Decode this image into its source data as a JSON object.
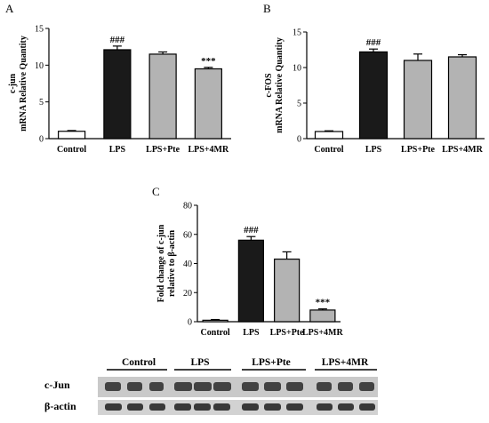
{
  "figure": {
    "panels": [
      "A",
      "B",
      "C"
    ]
  },
  "colors": {
    "control": "#ffffff",
    "lps": "#1a1a1a",
    "pte": "#b3b3b3",
    "mr": "#b3b3b3",
    "axis": "#000000"
  },
  "chart_data": [
    {
      "id": "A",
      "type": "bar",
      "title": "",
      "ylabel": [
        "c-jun",
        "mRNA Relative Quantity"
      ],
      "categories": [
        "Control",
        "LPS",
        "LPS+Pte",
        "LPS+4MR"
      ],
      "values": [
        1.0,
        12.1,
        11.5,
        9.5
      ],
      "errors": [
        0.1,
        0.5,
        0.3,
        0.2
      ],
      "annotations": [
        "",
        "###",
        "",
        "***"
      ],
      "ylim": [
        0,
        15
      ],
      "yticks": [
        0,
        5,
        10,
        15
      ]
    },
    {
      "id": "B",
      "type": "bar",
      "title": "",
      "ylabel": [
        "c-FOS",
        "mRNA Relative Quantity"
      ],
      "categories": [
        "Control",
        "LPS",
        "LPS+Pte",
        "LPS+4MR"
      ],
      "values": [
        1.0,
        12.2,
        11.0,
        11.5
      ],
      "errors": [
        0.1,
        0.4,
        0.9,
        0.3
      ],
      "annotations": [
        "",
        "###",
        "",
        ""
      ],
      "ylim": [
        0,
        15
      ],
      "yticks": [
        0,
        5,
        10,
        15
      ]
    },
    {
      "id": "C",
      "type": "bar",
      "title": "",
      "ylabel": [
        "Fold change of c-jun",
        "relative to β-actin"
      ],
      "categories": [
        "Control",
        "LPS",
        "LPS+Pte",
        "LPS+4MR"
      ],
      "values": [
        1.0,
        56.0,
        43.0,
        8.0
      ],
      "errors": [
        0.5,
        2.5,
        5.0,
        0.8
      ],
      "annotations": [
        "",
        "###",
        "",
        "***"
      ],
      "ylim": [
        0,
        80
      ],
      "yticks": [
        0,
        20,
        40,
        60,
        80
      ]
    }
  ],
  "blot": {
    "groups": [
      "Control",
      "LPS",
      "LPS+Pte",
      "LPS+4MR"
    ],
    "rows": [
      "c-Jun",
      "β-actin"
    ]
  }
}
